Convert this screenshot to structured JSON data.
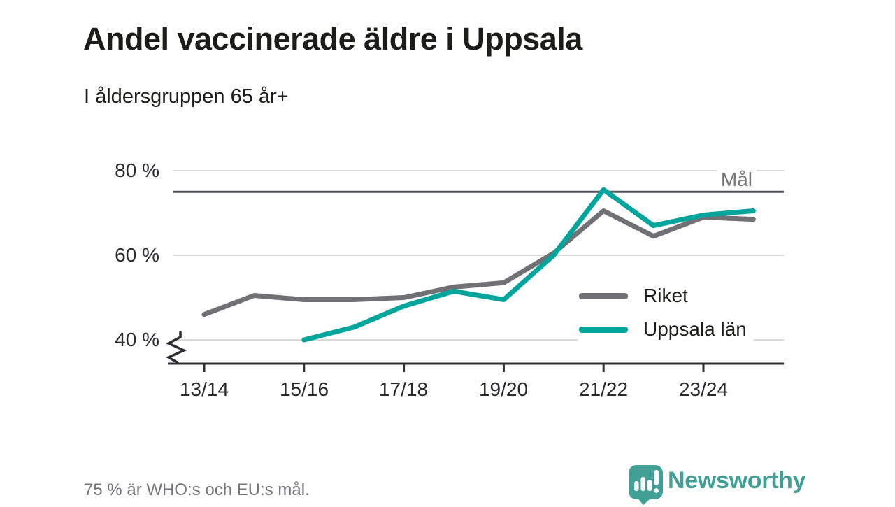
{
  "header": {
    "title": "Andel vaccinerade äldre i Uppsala",
    "subtitle": "I åldersgruppen 65 år+"
  },
  "chart_data": {
    "type": "line",
    "title": "Andel vaccinerade äldre i Uppsala",
    "subtitle": "I åldersgruppen 65 år+",
    "unit": "%",
    "categories": [
      "13/14",
      "14/15",
      "15/16",
      "16/17",
      "17/18",
      "18/19",
      "19/20",
      "20/21",
      "21/22",
      "22/23",
      "23/24",
      "24/25"
    ],
    "xtick_labels": [
      "13/14",
      "15/16",
      "17/18",
      "19/20",
      "21/22",
      "23/24"
    ],
    "yticks": [
      80,
      60,
      40
    ],
    "ytick_labels": [
      "80 %",
      "60 %",
      "40 %"
    ],
    "ylim": [
      40,
      80
    ],
    "axis_break_below": 40,
    "grid": true,
    "legend_position": "inside-bottom-right",
    "goal": {
      "label": "Mål",
      "value": 75
    },
    "series": [
      {
        "name": "Riket",
        "color": "#717175",
        "values": [
          46,
          50.5,
          49.5,
          49.5,
          50,
          52.5,
          53.5,
          60.5,
          70.5,
          64.5,
          69,
          68.5
        ]
      },
      {
        "name": "Uppsala län",
        "color": "#00a59b",
        "values": [
          null,
          null,
          40,
          43,
          48,
          51.5,
          49.5,
          60,
          75.5,
          67,
          69.5,
          70.5
        ]
      }
    ]
  },
  "footer": {
    "note": "75 % är WHO:s och EU:s mål.",
    "brand": "Newsworthy"
  },
  "colors": {
    "riket_line": "#717175",
    "uppsala_line": "#00a59b",
    "goal_line": "#55555b",
    "grid_line": "#d9d9d9",
    "axis": "#2f2f33",
    "muted_text": "#74747a",
    "dark_text": "#1c1c1a",
    "brand_teal": "#41a096"
  }
}
